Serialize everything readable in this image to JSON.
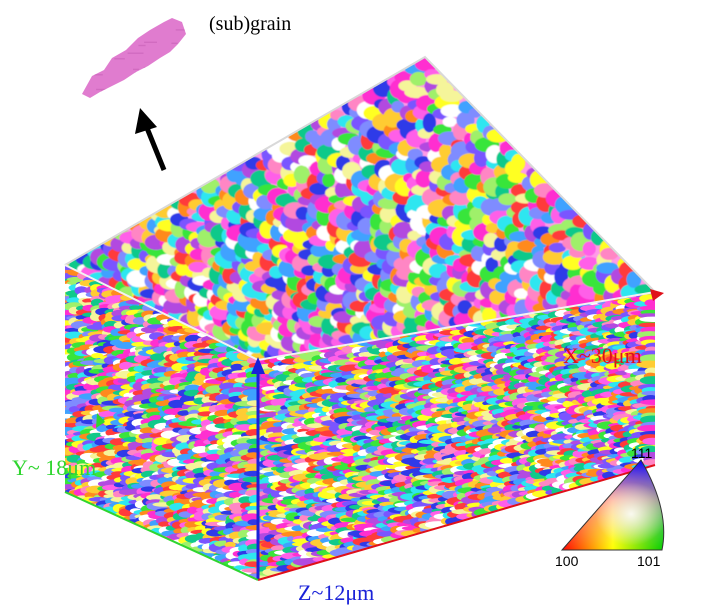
{
  "subgrain_label": "(sub)grain",
  "axes": {
    "x_label": "X~30μm",
    "y_label": "Y~ 18μm",
    "z_label": "Z~12μm"
  },
  "ipf_key": {
    "corner_111": "111",
    "corner_100": "100",
    "corner_101": "101",
    "colors": {
      "c100": "#ff0000",
      "c101": "#00cc00",
      "c111": "#0000ff"
    }
  },
  "colors": {
    "x_axis": "#e0101a",
    "y_axis": "#2fd52f",
    "z_axis": "#1a22d8",
    "subgrain": "#e07ccf",
    "palette": [
      "#ff2fd0",
      "#ffff22",
      "#2f3ae8",
      "#ff8a1e",
      "#39e53a",
      "#2ee6f0",
      "#ff3b3b",
      "#b24ae0",
      "#7a55ff",
      "#9ff06a",
      "#ffffff",
      "#ff86c4",
      "#ffcc33",
      "#3fa2ff",
      "#11c98a",
      "#ff5fe8",
      "#f5f59a",
      "#7f8cff"
    ]
  }
}
